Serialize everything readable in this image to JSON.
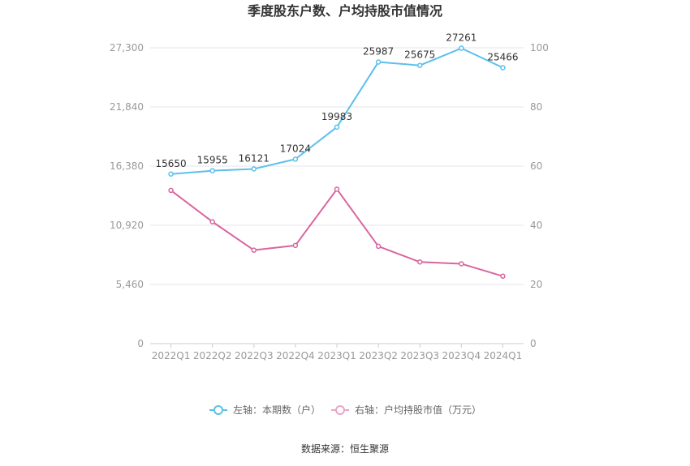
{
  "title": "季度股东户数、户均持股市值情况",
  "source": "数据来源：恒生聚源",
  "colors": {
    "shareholders": "#5bc0eb",
    "market_value": "#d9669f",
    "grid": "#e6e6ee",
    "axis_text": "#999999"
  },
  "legend": {
    "left_series": "左轴：本期数（户）",
    "right_series": "右轴：户均持股市值（万元）"
  },
  "chart_data": {
    "type": "line",
    "categories": [
      "2022Q1",
      "2022Q2",
      "2022Q3",
      "2022Q4",
      "2023Q1",
      "2023Q2",
      "2023Q3",
      "2023Q4",
      "2024Q1"
    ],
    "left_axis": {
      "ticks": [
        "0",
        "5,460",
        "10,920",
        "16,380",
        "21,840",
        "27,300"
      ],
      "ylim": [
        0,
        27300
      ]
    },
    "right_axis": {
      "ticks": [
        "0",
        "20",
        "40",
        "60",
        "80",
        "100"
      ],
      "ylim": [
        0,
        100
      ]
    },
    "series": [
      {
        "name": "左轴：本期数（户）",
        "axis": "left",
        "values": [
          15650,
          15955,
          16121,
          17024,
          19983,
          25987,
          25675,
          27261,
          25466
        ],
        "labels": [
          "15650",
          "15955",
          "16121",
          "17024",
          "19983",
          "25987",
          "25675",
          "27261",
          "25466"
        ]
      },
      {
        "name": "右轴：户均持股市值（万元）",
        "axis": "right",
        "values": [
          51.8,
          41.2,
          31.6,
          33.2,
          52.2,
          32.9,
          27.6,
          27.0,
          22.8
        ]
      }
    ],
    "grid": true,
    "legend_position": "bottom"
  }
}
